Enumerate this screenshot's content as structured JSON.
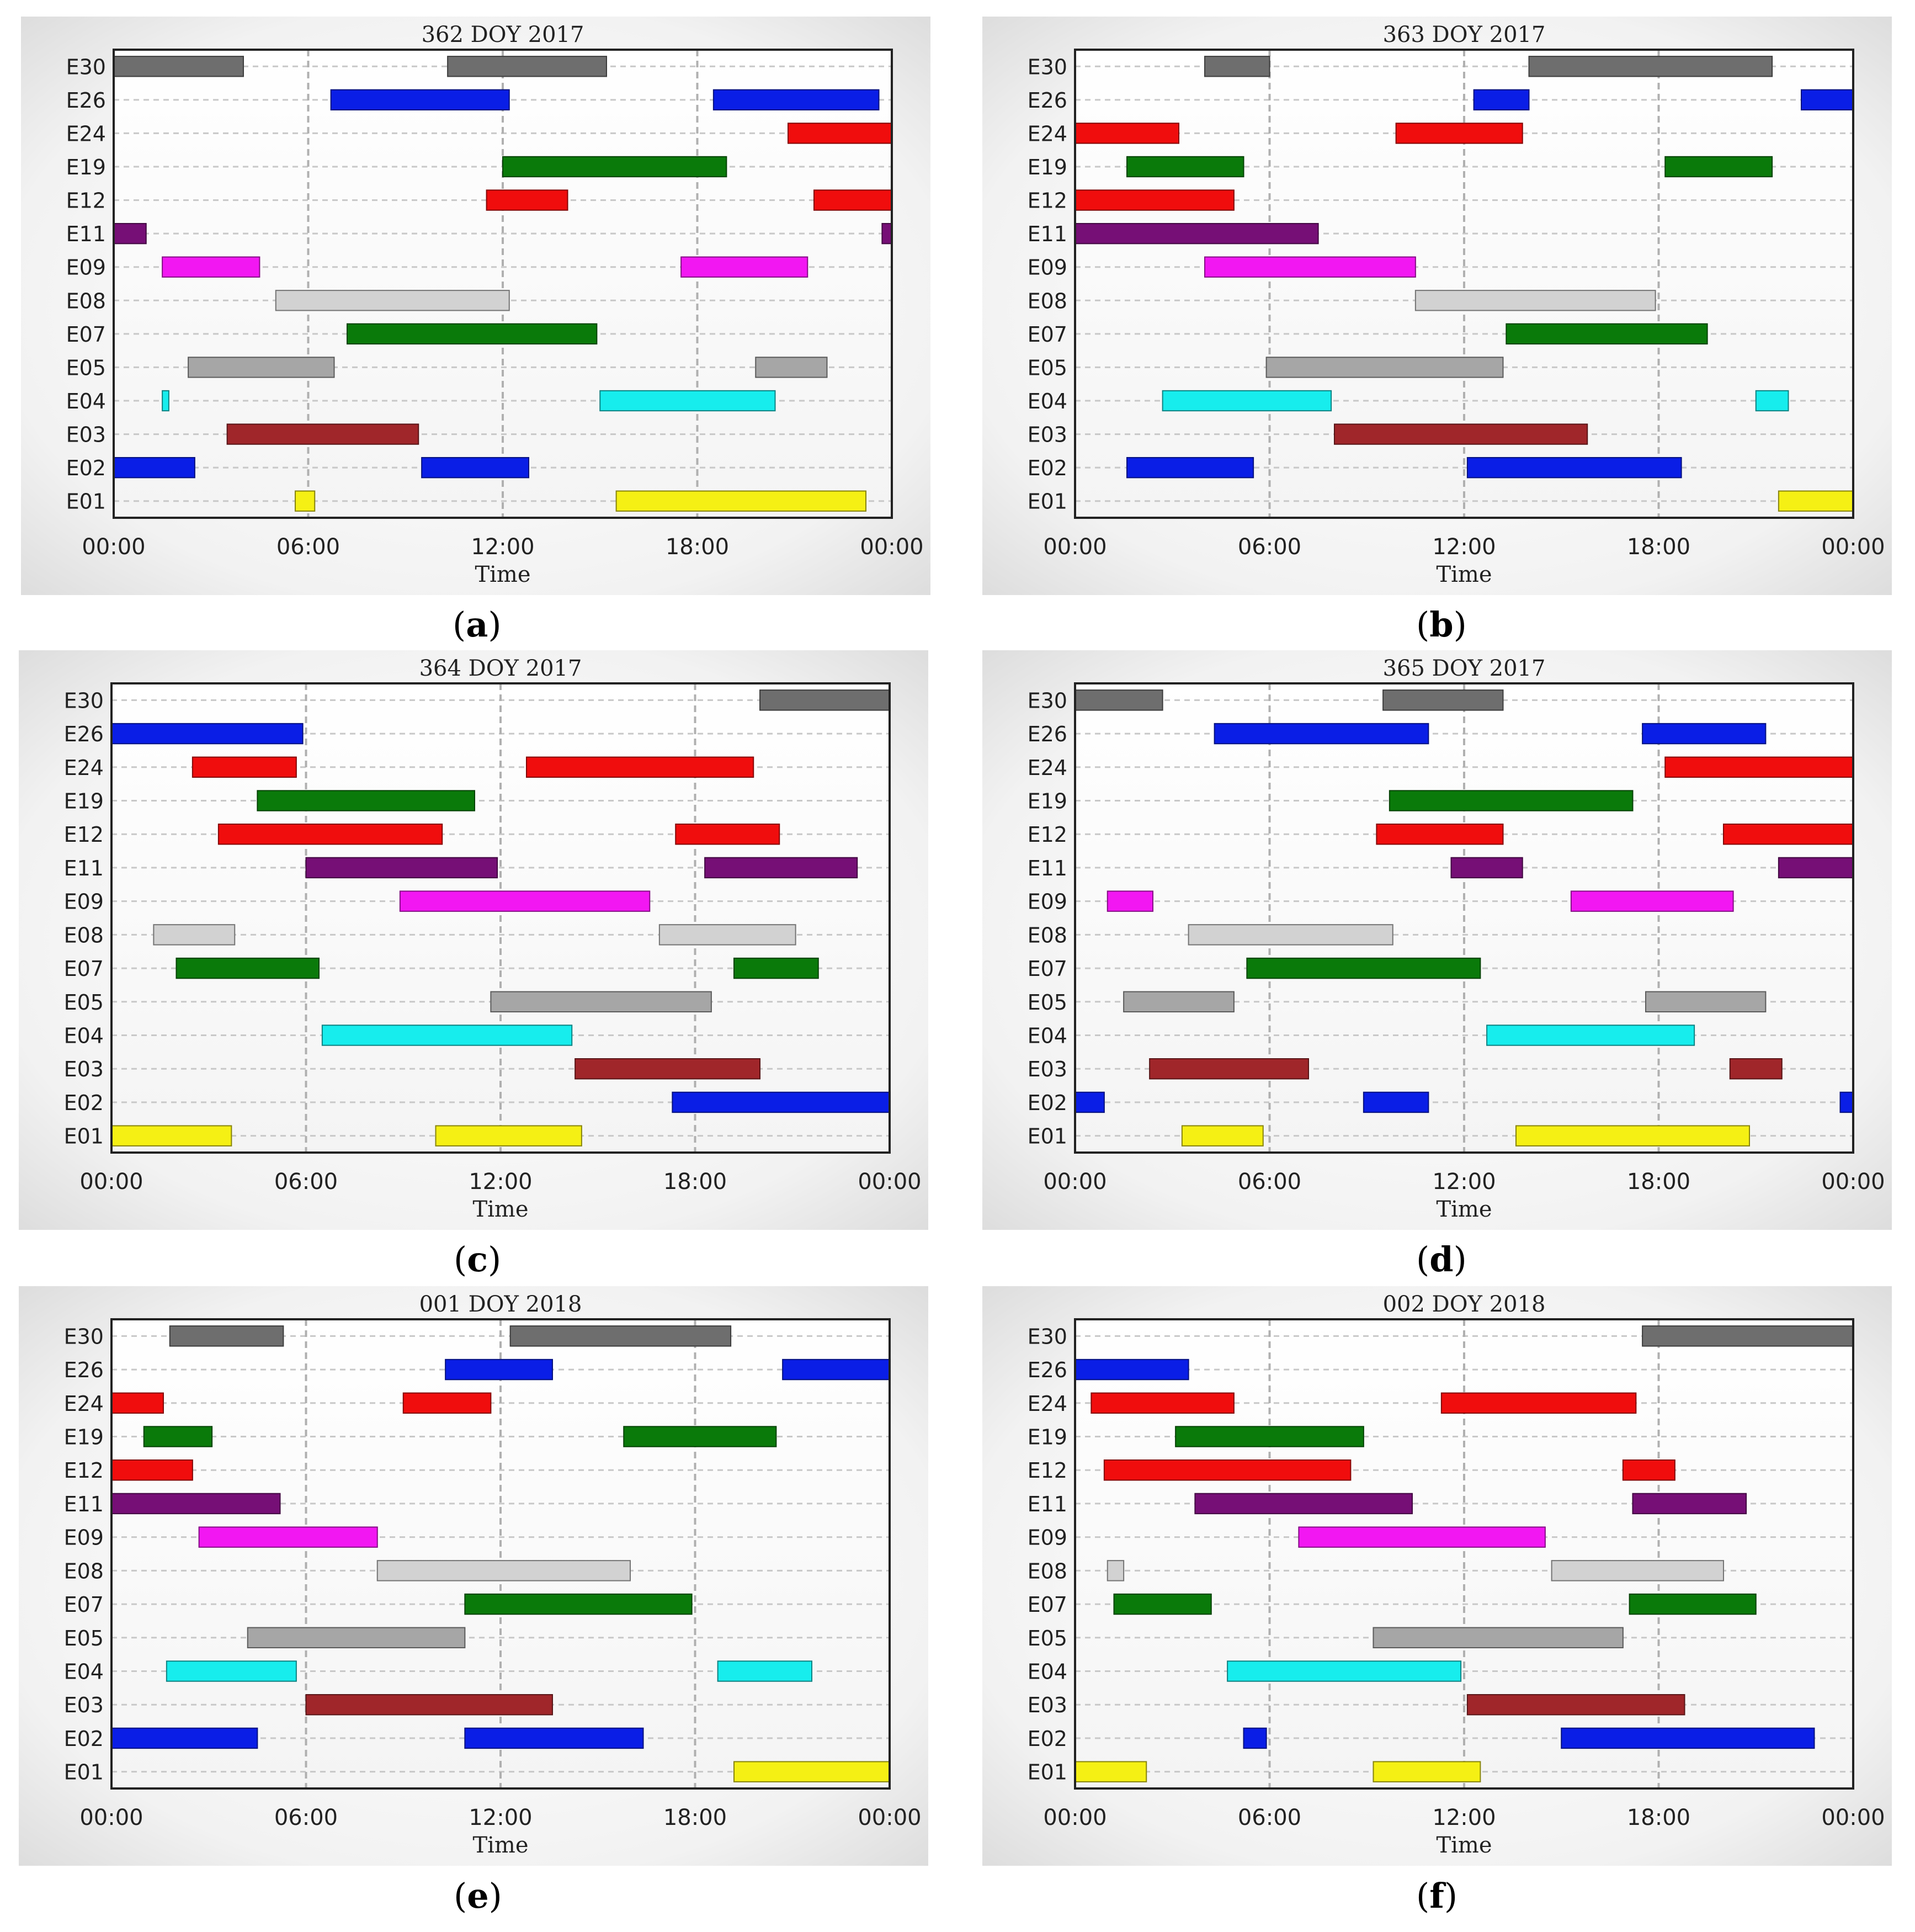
{
  "rows": [
    "E30",
    "E26",
    "E24",
    "E19",
    "E12",
    "E11",
    "E09",
    "E08",
    "E07",
    "E05",
    "E04",
    "E03",
    "E02",
    "E01"
  ],
  "x_ticks": [
    "00:00",
    "06:00",
    "12:00",
    "18:00",
    "00:00"
  ],
  "xlabel": "Time",
  "colors": {
    "E30": "#6e6e6e",
    "E26": "#0a1ee6",
    "E24": "#f00d0d",
    "E19": "#0a7a0a",
    "E12": "#f00d0d",
    "E11": "#760f76",
    "E09": "#f217f2",
    "E08": "#d2d2d2",
    "E07": "#0a7a0a",
    "E05": "#a6a6a6",
    "E04": "#17eded",
    "E03": "#a0262a",
    "E02": "#0a1ee6",
    "E01": "#f5f014"
  },
  "captions": [
    {
      "open": "(",
      "letter": "a",
      "close": ")"
    },
    {
      "open": "(",
      "letter": "b",
      "close": ")"
    },
    {
      "open": "(",
      "letter": "c",
      "close": ")"
    },
    {
      "open": "(",
      "letter": "d",
      "close": ")"
    },
    {
      "open": "(",
      "letter": "e",
      "close": ")"
    },
    {
      "open": "(",
      "letter": "f",
      "close": ")"
    }
  ],
  "chart_data": [
    {
      "type": "gantt",
      "title": "362 DOY 2017",
      "xlabel": "Time",
      "xlim_hours": [
        0,
        24
      ],
      "bars": {
        "E30": [
          [
            0,
            4
          ],
          [
            10.3,
            15.2
          ]
        ],
        "E26": [
          [
            6.7,
            12.2
          ],
          [
            18.5,
            23.6
          ]
        ],
        "E24": [
          [
            20.8,
            24
          ]
        ],
        "E19": [
          [
            12,
            18.9
          ]
        ],
        "E12": [
          [
            11.5,
            14
          ],
          [
            21.6,
            24
          ]
        ],
        "E11": [
          [
            0,
            1
          ],
          [
            23.7,
            24
          ]
        ],
        "E09": [
          [
            1.5,
            4.5
          ],
          [
            17.5,
            21.4
          ]
        ],
        "E08": [
          [
            5,
            12.2
          ]
        ],
        "E07": [
          [
            7.2,
            14.9
          ]
        ],
        "E05": [
          [
            2.3,
            6.8
          ],
          [
            19.8,
            22
          ]
        ],
        "E04": [
          [
            1.5,
            1.7
          ],
          [
            15,
            20.4
          ]
        ],
        "E03": [
          [
            3.5,
            9.4
          ]
        ],
        "E02": [
          [
            0,
            2.5
          ],
          [
            9.5,
            12.8
          ]
        ],
        "E01": [
          [
            5.6,
            6.2
          ],
          [
            15.5,
            23.2
          ]
        ]
      }
    },
    {
      "type": "gantt",
      "title": "363 DOY 2017",
      "xlabel": "Time",
      "xlim_hours": [
        0,
        24
      ],
      "bars": {
        "E30": [
          [
            4,
            6
          ],
          [
            14,
            21.5
          ]
        ],
        "E26": [
          [
            12.3,
            14
          ],
          [
            22.4,
            24
          ]
        ],
        "E24": [
          [
            0,
            3.2
          ],
          [
            9.9,
            13.8
          ]
        ],
        "E19": [
          [
            1.6,
            5.2
          ],
          [
            18.2,
            21.5
          ]
        ],
        "E12": [
          [
            0,
            4.9
          ]
        ],
        "E11": [
          [
            0,
            7.5
          ]
        ],
        "E09": [
          [
            4,
            10.5
          ]
        ],
        "E08": [
          [
            10.5,
            17.9
          ]
        ],
        "E07": [
          [
            13.3,
            19.5
          ]
        ],
        "E05": [
          [
            5.9,
            13.2
          ]
        ],
        "E04": [
          [
            2.7,
            7.9
          ],
          [
            21,
            22
          ]
        ],
        "E03": [
          [
            8,
            15.8
          ]
        ],
        "E02": [
          [
            1.6,
            5.5
          ],
          [
            12.1,
            18.7
          ]
        ],
        "E01": [
          [
            21.7,
            24
          ]
        ]
      }
    },
    {
      "type": "gantt",
      "title": "364 DOY 2017",
      "xlabel": "Time",
      "xlim_hours": [
        0,
        24
      ],
      "bars": {
        "E30": [
          [
            20,
            24
          ]
        ],
        "E26": [
          [
            0,
            5.9
          ]
        ],
        "E24": [
          [
            2.5,
            5.7
          ],
          [
            12.8,
            19.8
          ]
        ],
        "E19": [
          [
            4.5,
            11.2
          ]
        ],
        "E12": [
          [
            3.3,
            10.2
          ],
          [
            17.4,
            20.6
          ]
        ],
        "E11": [
          [
            6,
            11.9
          ],
          [
            18.3,
            23
          ]
        ],
        "E09": [
          [
            8.9,
            16.6
          ]
        ],
        "E08": [
          [
            1.3,
            3.8
          ],
          [
            16.9,
            21.1
          ]
        ],
        "E07": [
          [
            2,
            6.4
          ],
          [
            19.2,
            21.8
          ]
        ],
        "E05": [
          [
            11.7,
            18.5
          ]
        ],
        "E04": [
          [
            6.5,
            14.2
          ]
        ],
        "E03": [
          [
            14.3,
            20
          ]
        ],
        "E02": [
          [
            17.3,
            24
          ]
        ],
        "E01": [
          [
            0,
            3.7
          ],
          [
            10,
            14.5
          ]
        ]
      }
    },
    {
      "type": "gantt",
      "title": "365 DOY 2017",
      "xlabel": "Time",
      "xlim_hours": [
        0,
        24
      ],
      "bars": {
        "E30": [
          [
            0,
            2.7
          ],
          [
            9.5,
            13.2
          ]
        ],
        "E26": [
          [
            4.3,
            10.9
          ],
          [
            17.5,
            21.3
          ]
        ],
        "E24": [
          [
            18.2,
            24
          ]
        ],
        "E19": [
          [
            9.7,
            17.2
          ]
        ],
        "E12": [
          [
            9.3,
            13.2
          ],
          [
            20,
            24
          ]
        ],
        "E11": [
          [
            11.6,
            13.8
          ],
          [
            21.7,
            24
          ]
        ],
        "E09": [
          [
            1,
            2.4
          ],
          [
            15.3,
            20.3
          ]
        ],
        "E08": [
          [
            3.5,
            9.8
          ]
        ],
        "E07": [
          [
            5.3,
            12.5
          ]
        ],
        "E05": [
          [
            1.5,
            4.9
          ],
          [
            17.6,
            21.3
          ]
        ],
        "E04": [
          [
            12.7,
            19.1
          ]
        ],
        "E03": [
          [
            2.3,
            7.2
          ],
          [
            20.2,
            21.8
          ]
        ],
        "E02": [
          [
            0,
            0.9
          ],
          [
            8.9,
            10.9
          ],
          [
            23.6,
            24
          ]
        ],
        "E01": [
          [
            3.3,
            5.8
          ],
          [
            13.6,
            20.8
          ]
        ]
      }
    },
    {
      "type": "gantt",
      "title": "001 DOY 2018",
      "xlabel": "Time",
      "xlim_hours": [
        0,
        24
      ],
      "bars": {
        "E30": [
          [
            1.8,
            5.3
          ],
          [
            12.3,
            19.1
          ]
        ],
        "E26": [
          [
            10.3,
            13.6
          ],
          [
            20.7,
            24
          ]
        ],
        "E24": [
          [
            0,
            1.6
          ],
          [
            9,
            11.7
          ]
        ],
        "E19": [
          [
            1,
            3.1
          ],
          [
            15.8,
            20.5
          ]
        ],
        "E12": [
          [
            0,
            2.5
          ]
        ],
        "E11": [
          [
            0,
            5.2
          ]
        ],
        "E09": [
          [
            2.7,
            8.2
          ]
        ],
        "E08": [
          [
            8.2,
            16
          ]
        ],
        "E07": [
          [
            10.9,
            17.9
          ]
        ],
        "E05": [
          [
            4.2,
            10.9
          ]
        ],
        "E04": [
          [
            1.7,
            5.7
          ],
          [
            18.7,
            21.6
          ]
        ],
        "E03": [
          [
            6,
            13.6
          ]
        ],
        "E02": [
          [
            0,
            4.5
          ],
          [
            10.9,
            16.4
          ]
        ],
        "E01": [
          [
            19.2,
            24
          ]
        ]
      }
    },
    {
      "type": "gantt",
      "title": "002 DOY 2018",
      "xlabel": "Time",
      "xlim_hours": [
        0,
        24
      ],
      "bars": {
        "E30": [
          [
            17.5,
            24
          ]
        ],
        "E26": [
          [
            0,
            3.5
          ]
        ],
        "E24": [
          [
            0.5,
            4.9
          ],
          [
            11.3,
            17.3
          ]
        ],
        "E19": [
          [
            3.1,
            8.9
          ]
        ],
        "E12": [
          [
            0.9,
            8.5
          ],
          [
            16.9,
            18.5
          ]
        ],
        "E11": [
          [
            3.7,
            10.4
          ],
          [
            17.2,
            20.7
          ]
        ],
        "E09": [
          [
            6.9,
            14.5
          ]
        ],
        "E08": [
          [
            1,
            1.5
          ],
          [
            14.7,
            20
          ]
        ],
        "E07": [
          [
            1.2,
            4.2
          ],
          [
            17.1,
            21
          ]
        ],
        "E05": [
          [
            9.2,
            16.9
          ]
        ],
        "E04": [
          [
            4.7,
            11.9
          ]
        ],
        "E03": [
          [
            12.1,
            18.8
          ]
        ],
        "E02": [
          [
            5.2,
            5.9
          ],
          [
            15,
            22.8
          ]
        ],
        "E01": [
          [
            0,
            2.2
          ],
          [
            9.2,
            12.5
          ]
        ]
      }
    }
  ]
}
